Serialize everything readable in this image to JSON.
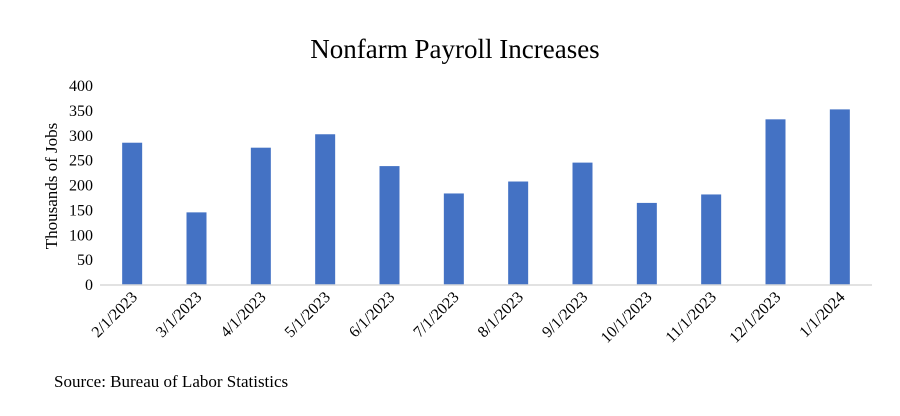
{
  "chart_data": {
    "type": "bar",
    "title": "Nonfarm Payroll Increases",
    "xlabel": "",
    "ylabel": "Thousands of Jobs",
    "categories": [
      "2/1/2023",
      "3/1/2023",
      "4/1/2023",
      "5/1/2023",
      "6/1/2023",
      "7/1/2023",
      "8/1/2023",
      "9/1/2023",
      "10/1/2023",
      "11/1/2023",
      "12/1/2023",
      "1/1/2024"
    ],
    "values": [
      286,
      146,
      276,
      303,
      239,
      184,
      208,
      246,
      165,
      182,
      333,
      353
    ],
    "ylim": [
      0,
      400
    ],
    "yticks": [
      "0",
      "50",
      "100",
      "150",
      "200",
      "250",
      "300",
      "350",
      "400"
    ],
    "grid": false,
    "legend": "none",
    "bar_color": "#4472C4"
  },
  "footer": {
    "source": "Source: Bureau of Labor Statistics"
  }
}
